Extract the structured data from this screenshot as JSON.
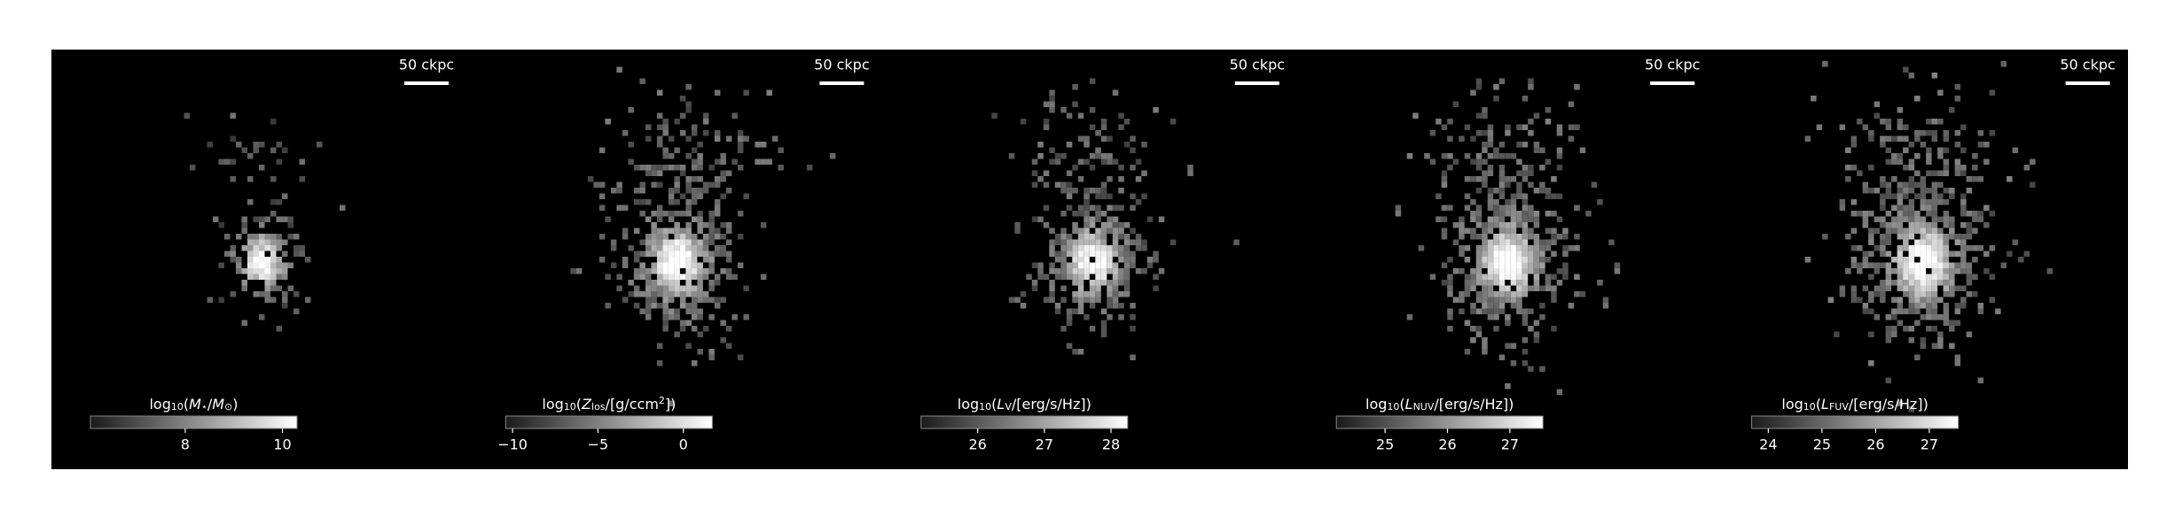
{
  "chart_data": [
    {
      "type": "image",
      "scalebar": "50 ckpc",
      "colorbar": {
        "label": [
          {
            "t": "log"
          },
          {
            "t": "10",
            "sub": true
          },
          {
            "t": "("
          },
          {
            "t": "M",
            "italic": true
          },
          {
            "t": "⋆",
            "sub": true
          },
          {
            "t": "/"
          },
          {
            "t": "M",
            "italic": true
          },
          {
            "t": "⊙",
            "sub": true
          },
          {
            "t": ")"
          }
        ],
        "clim": [
          6.05,
          10.3
        ],
        "ticks": [
          8,
          10
        ]
      }
    },
    {
      "type": "image",
      "scalebar": "50 ckpc",
      "colorbar": {
        "label": [
          {
            "t": "log"
          },
          {
            "t": "10",
            "sub": true
          },
          {
            "t": "("
          },
          {
            "t": "Z",
            "italic": true
          },
          {
            "t": "los",
            "sub": true
          },
          {
            "t": "/[g/ccm"
          },
          {
            "t": "2",
            "sup": true
          },
          {
            "t": "])"
          }
        ],
        "clim": [
          -10.4,
          1.7
        ],
        "ticks": [
          {
            "value": -10,
            "label": "−10"
          },
          {
            "value": -5,
            "label": "−5"
          },
          0
        ]
      }
    },
    {
      "type": "image",
      "scalebar": "50 ckpc",
      "colorbar": {
        "label": [
          {
            "t": "log"
          },
          {
            "t": "10",
            "sub": true
          },
          {
            "t": "("
          },
          {
            "t": "L",
            "italic": true
          },
          {
            "t": "V",
            "sub": true
          },
          {
            "t": "/[erg/s/Hz])"
          }
        ],
        "clim": [
          25.15,
          28.25
        ],
        "ticks": [
          26,
          27,
          28
        ]
      }
    },
    {
      "type": "image",
      "scalebar": "50 ckpc",
      "colorbar": {
        "label": [
          {
            "t": "log"
          },
          {
            "t": "10",
            "sub": true
          },
          {
            "t": "("
          },
          {
            "t": "L",
            "italic": true
          },
          {
            "t": "NUV",
            "sub": true
          },
          {
            "t": "/[erg/s/Hz])"
          }
        ],
        "clim": [
          24.22,
          27.53
        ],
        "ticks": [
          25,
          26,
          27
        ]
      }
    },
    {
      "type": "image",
      "scalebar": "50 ckpc",
      "colorbar": {
        "label": [
          {
            "t": "log"
          },
          {
            "t": "10",
            "sub": true
          },
          {
            "t": "("
          },
          {
            "t": "L",
            "italic": true
          },
          {
            "t": "FUV",
            "sub": true
          },
          {
            "t": "/[erg/s/Hz])"
          }
        ],
        "clim": [
          23.69,
          27.54
        ],
        "ticks": [
          24,
          25,
          26,
          27
        ]
      }
    }
  ]
}
